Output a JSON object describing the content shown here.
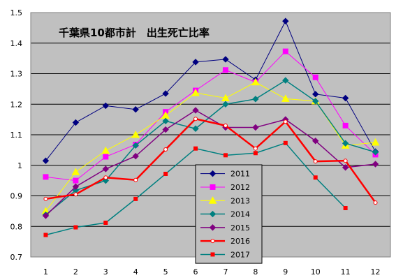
{
  "chart_data": {
    "type": "line",
    "title": "千葉県10都市計　出生死亡比率",
    "xlabel": "",
    "ylabel": "",
    "categories": [
      "1",
      "2",
      "3",
      "4",
      "5",
      "6",
      "7",
      "8",
      "9",
      "10",
      "11",
      "12"
    ],
    "ylim": [
      0.7,
      1.5
    ],
    "yticks": [
      "0.7",
      "0.8",
      "0.9",
      "1",
      "1.1",
      "1.2",
      "1.3",
      "1.4",
      "1.5"
    ],
    "grid": true,
    "legend_position": "bottom-center",
    "series": [
      {
        "name": "2011",
        "color": "#000080",
        "marker": "diamond",
        "line_width": 1,
        "values": [
          1.015,
          1.14,
          1.195,
          1.183,
          1.235,
          1.338,
          1.347,
          1.28,
          1.472,
          1.233,
          1.22,
          1.045
        ]
      },
      {
        "name": "2012",
        "color": "#FF00FF",
        "marker": "square",
        "line_width": 1,
        "values": [
          0.962,
          0.95,
          1.028,
          1.068,
          1.175,
          1.245,
          1.312,
          1.272,
          1.373,
          1.288,
          1.13,
          1.035
        ]
      },
      {
        "name": "2013",
        "color": "#FFFF00",
        "marker": "triangle",
        "line_width": 1,
        "values": [
          0.85,
          0.978,
          1.048,
          1.1,
          1.163,
          1.237,
          1.22,
          1.272,
          1.218,
          1.21,
          1.065,
          1.075
        ]
      },
      {
        "name": "2014",
        "color": "#008080",
        "marker": "diamond",
        "line_width": 1.5,
        "values": [
          0.838,
          0.918,
          0.95,
          1.065,
          1.145,
          1.12,
          1.2,
          1.217,
          1.278,
          1.21,
          1.072,
          1.043
        ]
      },
      {
        "name": "2015",
        "color": "#800080",
        "marker": "diamond",
        "line_width": 1.5,
        "values": [
          0.835,
          0.93,
          0.988,
          1.03,
          1.117,
          1.18,
          1.124,
          1.124,
          1.15,
          1.08,
          0.993,
          1.004
        ]
      },
      {
        "name": "2016",
        "color": "#FF0000",
        "marker": "circle",
        "line_width": 2.5,
        "values": [
          0.89,
          0.905,
          0.96,
          0.952,
          1.052,
          1.152,
          1.13,
          1.055,
          1.143,
          1.013,
          1.015,
          0.878
        ]
      },
      {
        "name": "2017",
        "color": "#008080",
        "marker": "square-red",
        "line_width": 1.5,
        "values": [
          0.772,
          0.797,
          0.812,
          0.89,
          0.972,
          1.055,
          1.033,
          1.04,
          1.073,
          0.96,
          0.86,
          null
        ]
      }
    ]
  }
}
